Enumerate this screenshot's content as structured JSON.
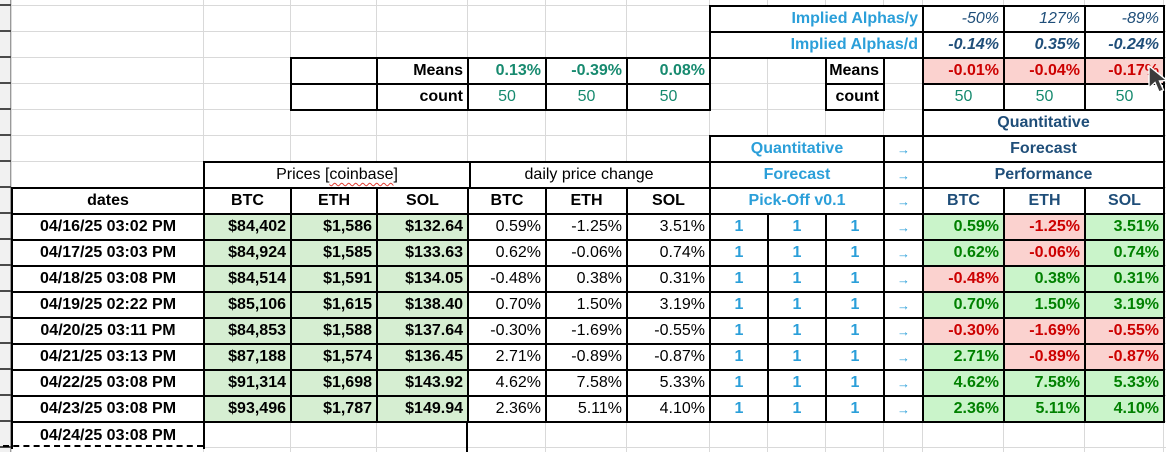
{
  "sheet": {
    "implied": {
      "label_y": "Implied Alphas/y",
      "label_d": "Implied Alphas/d",
      "values_y": [
        "-50%",
        "127%",
        "-89%"
      ],
      "values_d": [
        "-0.14%",
        "0.35%",
        "-0.24%"
      ]
    },
    "left_stats": {
      "means_label": "Means",
      "count_label": "count",
      "means": [
        "0.13%",
        "-0.39%",
        "0.08%"
      ],
      "counts": [
        "50",
        "50",
        "50"
      ]
    },
    "right_stats": {
      "means_label": "Means",
      "count_label": "count",
      "means": [
        "-0.01%",
        "-0.04%",
        "-0.17%"
      ],
      "counts": [
        "50",
        "50",
        "50"
      ]
    },
    "headers": {
      "prices_group": {
        "prefix": "Prices [",
        "word": "coinbase",
        "suffix": "]"
      },
      "change_group": "daily price change",
      "dates_label": "dates",
      "price_cols": [
        "BTC",
        "ETH",
        "SOL"
      ],
      "change_cols": [
        "BTC",
        "ETH",
        "SOL"
      ],
      "perf_cols": [
        "BTC",
        "ETH",
        "SOL"
      ],
      "left_panel": {
        "lines": [
          "Quantitative",
          "Forecast",
          "Pick-Off v0.1"
        ],
        "arrow": "→"
      },
      "right_panel": {
        "lines": [
          "Quantitative",
          "Forecast",
          "Performance"
        ]
      }
    },
    "rows": [
      {
        "date": "04/16/25 03:02 PM",
        "prices": [
          "$84,402",
          "$1,586",
          "$132.64"
        ],
        "changes": [
          "0.59%",
          "-1.25%",
          "3.51%"
        ],
        "signals": [
          "1",
          "1",
          "1"
        ],
        "arrow": "→",
        "perf": [
          "0.59%",
          "-1.25%",
          "3.51%"
        ]
      },
      {
        "date": "04/17/25 03:03 PM",
        "prices": [
          "$84,924",
          "$1,585",
          "$133.63"
        ],
        "changes": [
          "0.62%",
          "-0.06%",
          "0.74%"
        ],
        "signals": [
          "1",
          "1",
          "1"
        ],
        "arrow": "→",
        "perf": [
          "0.62%",
          "-0.06%",
          "0.74%"
        ]
      },
      {
        "date": "04/18/25 03:08 PM",
        "prices": [
          "$84,514",
          "$1,591",
          "$134.05"
        ],
        "changes": [
          "-0.48%",
          "0.38%",
          "0.31%"
        ],
        "signals": [
          "1",
          "1",
          "1"
        ],
        "arrow": "→",
        "perf": [
          "-0.48%",
          "0.38%",
          "0.31%"
        ]
      },
      {
        "date": "04/19/25 02:22 PM",
        "prices": [
          "$85,106",
          "$1,615",
          "$138.40"
        ],
        "changes": [
          "0.70%",
          "1.50%",
          "3.19%"
        ],
        "signals": [
          "1",
          "1",
          "1"
        ],
        "arrow": "→",
        "perf": [
          "0.70%",
          "1.50%",
          "3.19%"
        ]
      },
      {
        "date": "04/20/25 03:11 PM",
        "prices": [
          "$84,853",
          "$1,588",
          "$137.64"
        ],
        "changes": [
          "-0.30%",
          "-1.69%",
          "-0.55%"
        ],
        "signals": [
          "1",
          "1",
          "1"
        ],
        "arrow": "→",
        "perf": [
          "-0.30%",
          "-1.69%",
          "-0.55%"
        ]
      },
      {
        "date": "04/21/25 03:13 PM",
        "prices": [
          "$87,188",
          "$1,574",
          "$136.45"
        ],
        "changes": [
          "2.71%",
          "-0.89%",
          "-0.87%"
        ],
        "signals": [
          "1",
          "1",
          "1"
        ],
        "arrow": "→",
        "perf": [
          "2.71%",
          "-0.89%",
          "-0.87%"
        ]
      },
      {
        "date": "04/22/25 03:08 PM",
        "prices": [
          "$91,314",
          "$1,698",
          "$143.92"
        ],
        "changes": [
          "4.62%",
          "7.58%",
          "5.33%"
        ],
        "signals": [
          "1",
          "1",
          "1"
        ],
        "arrow": "→",
        "perf": [
          "4.62%",
          "7.58%",
          "5.33%"
        ]
      },
      {
        "date": "04/23/25 03:08 PM",
        "prices": [
          "$93,496",
          "$1,787",
          "$149.94"
        ],
        "changes": [
          "2.36%",
          "5.11%",
          "4.10%"
        ],
        "signals": [
          "1",
          "1",
          "1"
        ],
        "arrow": "→",
        "perf": [
          "2.36%",
          "5.11%",
          "4.10%"
        ]
      }
    ],
    "pending_row": {
      "date": "04/24/25 03:08 PM"
    },
    "colors": {
      "accent_blue": "#2b9fd9",
      "navy": "#1f4e79",
      "teal": "#178a6f",
      "green": "#008000",
      "red": "#cc0000",
      "price_bg": "#d6eed2",
      "pos_bg": "#caf4ca",
      "neg_bg": "#fbd2cf"
    }
  }
}
